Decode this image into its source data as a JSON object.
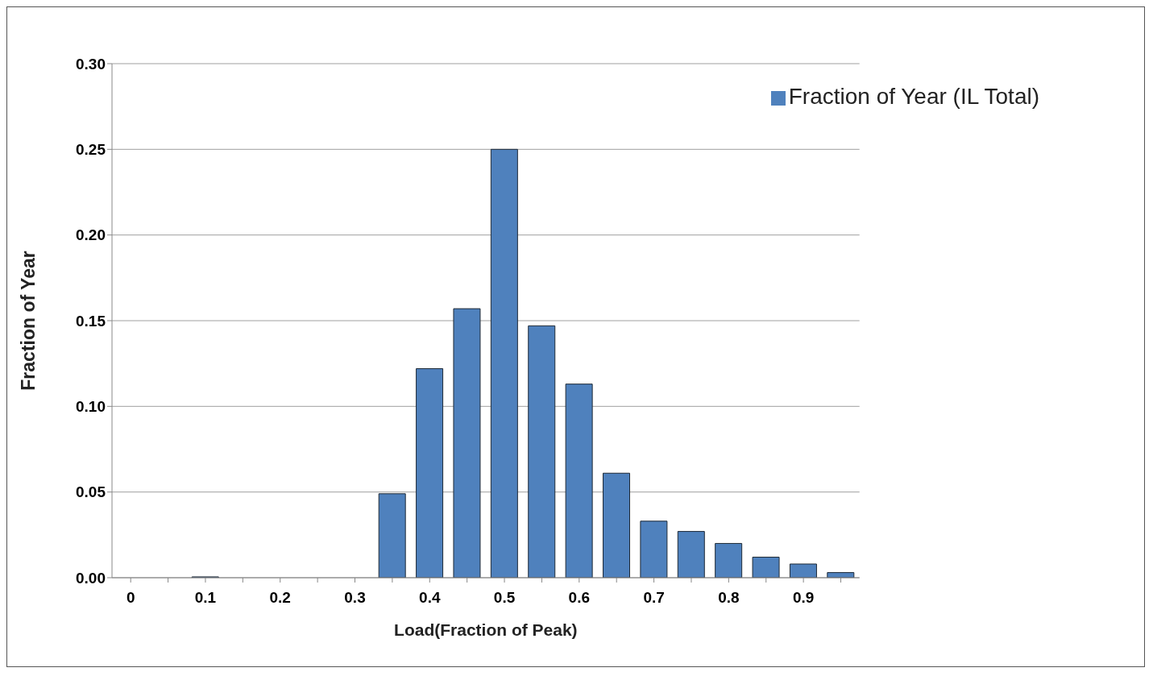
{
  "chart_data": {
    "type": "bar",
    "xlabel": "Load(Fraction of Peak)",
    "ylabel": "Fraction of Year",
    "categories": [
      "0",
      null,
      "0.1",
      null,
      "0.2",
      null,
      "0.3",
      null,
      "0.4",
      null,
      "0.5",
      null,
      "0.6",
      null,
      "0.7",
      null,
      "0.8",
      null,
      "0.9",
      null
    ],
    "series": [
      {
        "name": "Fraction of Year (IL Total)",
        "color": "#4f81bd",
        "values": [
          0,
          0,
          0.0005,
          0,
          0,
          0,
          0,
          0.049,
          0.122,
          0.157,
          0.25,
          0.147,
          0.113,
          0.061,
          0.033,
          0.027,
          0.02,
          0.012,
          0.008,
          0.003
        ]
      }
    ],
    "ylim": [
      0,
      0.3
    ],
    "yticks": [
      {
        "value": 0,
        "label": "0.00"
      },
      {
        "value": 0.05,
        "label": "0.05"
      },
      {
        "value": 0.1,
        "label": "0.10"
      },
      {
        "value": 0.15,
        "label": "0.15"
      },
      {
        "value": 0.2,
        "label": "0.20"
      },
      {
        "value": 0.25,
        "label": "0.25"
      },
      {
        "value": 0.3,
        "label": "0.30"
      }
    ],
    "grid": "y",
    "legend": "top right"
  }
}
